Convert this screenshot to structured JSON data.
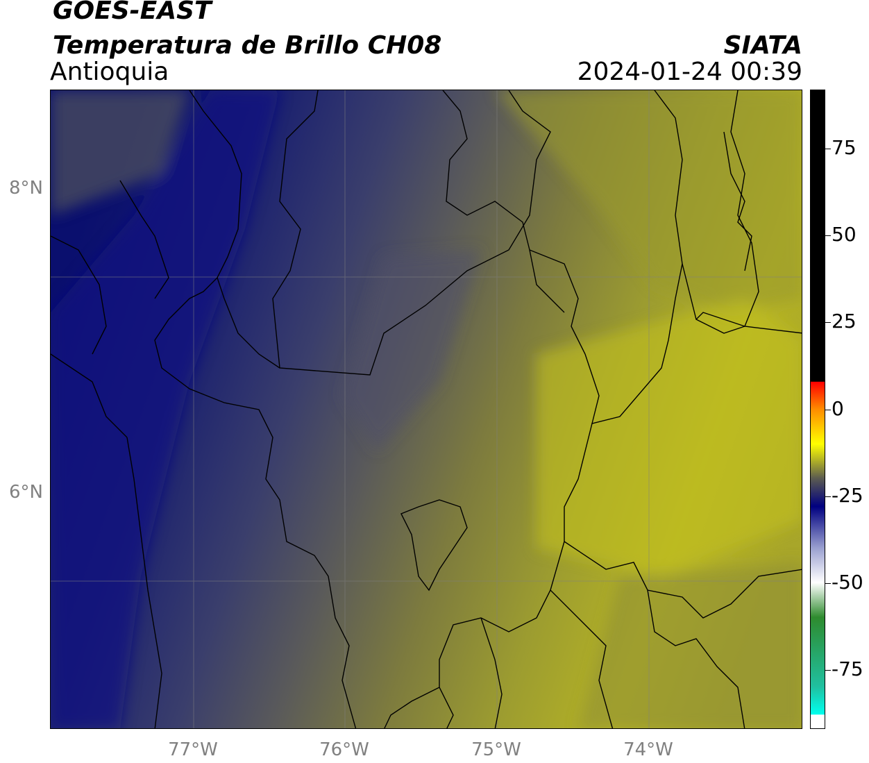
{
  "header": {
    "satellite": "GOES-EAST",
    "product": "Temperatura de Brillo CH08",
    "region": "Antioquia",
    "organization": "SIATA",
    "datetime": "2024-01-24 00:39"
  },
  "map": {
    "lat_labels": [
      "8°N",
      "6°N"
    ],
    "lon_labels": [
      "77°W",
      "76°W",
      "75°W",
      "74°W"
    ],
    "background_colors": {
      "deep_blue": "#0a0f6e",
      "navy": "#2a3070",
      "slate": "#4a4f6a",
      "olive": "#7a7a40",
      "khaki": "#9c9c30",
      "yellow": "#c6c41e"
    }
  },
  "colorbar": {
    "tick_labels": [
      "75",
      "50",
      "25",
      "0",
      "-25",
      "-50",
      "-75"
    ],
    "value_range": [
      -92,
      92
    ],
    "stops": [
      {
        "v": 92,
        "c": "#000000"
      },
      {
        "v": 8,
        "c": "#000000"
      },
      {
        "v": 7.9,
        "c": "#ff0000"
      },
      {
        "v": 0,
        "c": "#ff8c00"
      },
      {
        "v": -10,
        "c": "#ffff00"
      },
      {
        "v": -20,
        "c": "#5a5a50"
      },
      {
        "v": -28,
        "c": "#000080"
      },
      {
        "v": -40,
        "c": "#9aa0d0"
      },
      {
        "v": -50,
        "c": "#ffffff"
      },
      {
        "v": -60,
        "c": "#2e8b2e"
      },
      {
        "v": -80,
        "c": "#20c0a0"
      },
      {
        "v": -88,
        "c": "#00ffee"
      },
      {
        "v": -88.1,
        "c": "#ffffff"
      },
      {
        "v": -92,
        "c": "#ffffff"
      }
    ]
  }
}
